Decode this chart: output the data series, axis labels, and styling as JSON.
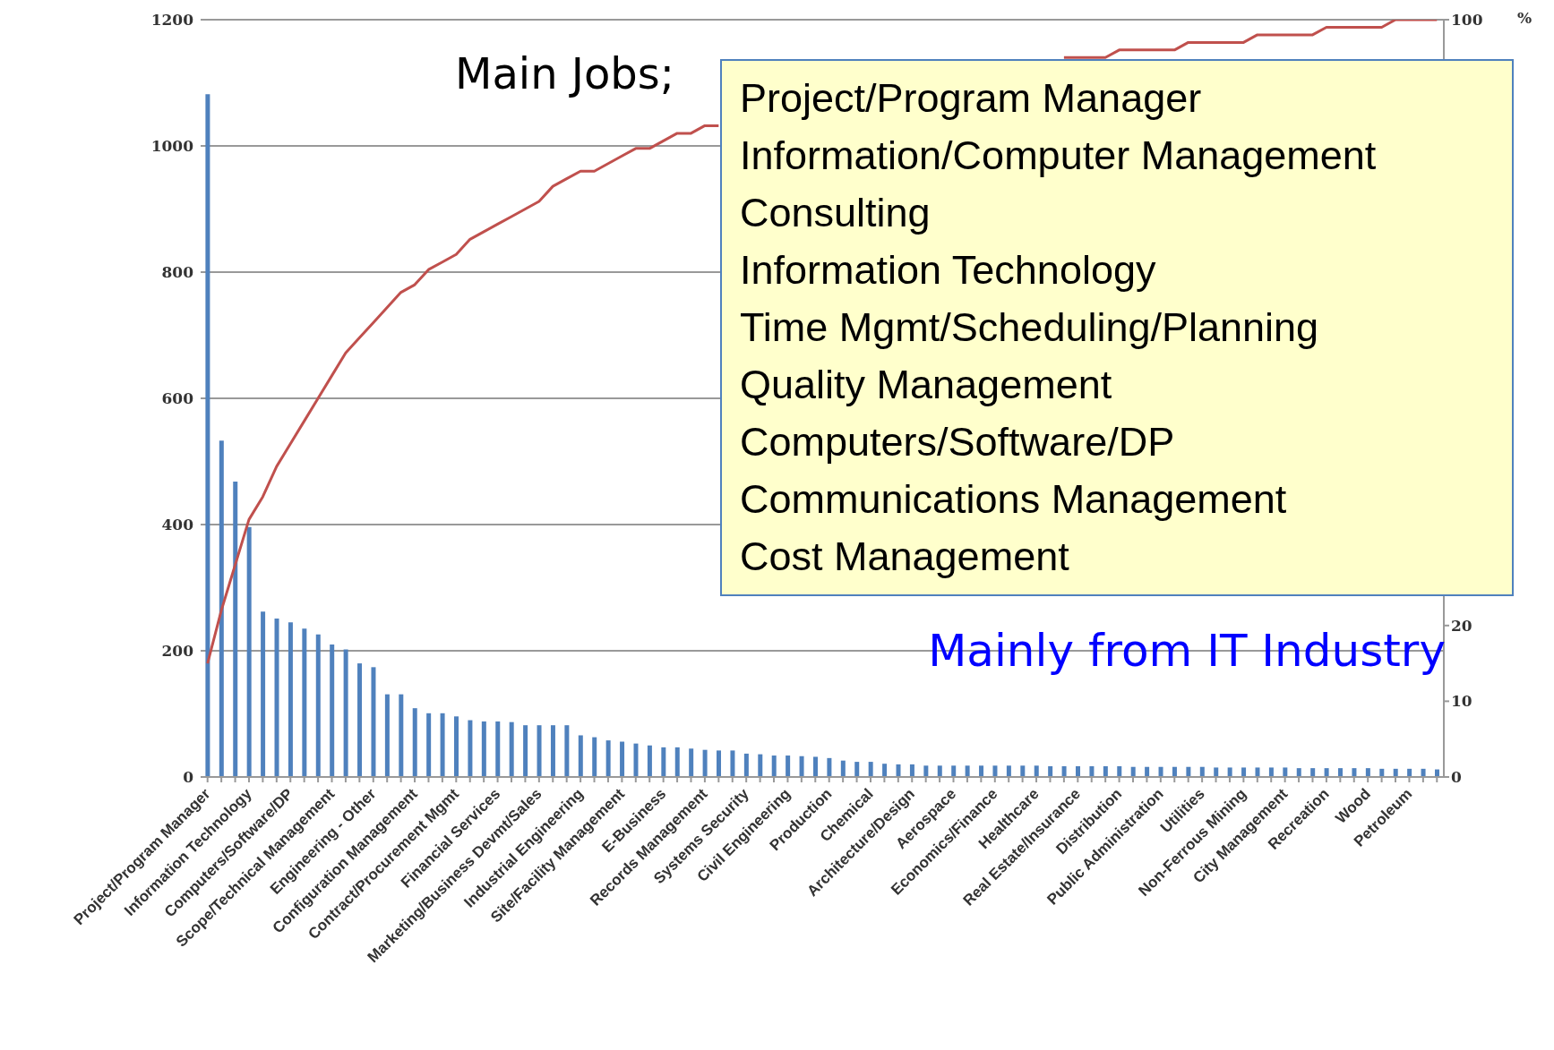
{
  "chart_data": {
    "type": "bar",
    "ylim": [
      0,
      1200
    ],
    "yticks": [
      0,
      200,
      400,
      600,
      800,
      1000,
      1200
    ],
    "y2lim": [
      0,
      100
    ],
    "y2ticks": [
      0,
      10,
      20,
      100
    ],
    "y2label": "%",
    "grid": "y",
    "legend": false,
    "categories": [
      "Project/Program Manager",
      null,
      null,
      "Information Technology",
      null,
      null,
      "Computers/Software/DP",
      null,
      null,
      "Scope/Technical Management",
      null,
      null,
      "Engineering - Other",
      null,
      null,
      "Configuration Management",
      null,
      null,
      "Contract/Procurement Mgmt",
      null,
      null,
      "Financial Services",
      null,
      null,
      "Marketing/Business Devmt/Sales",
      null,
      null,
      "Industrial Engineering",
      null,
      null,
      "Site/Facility Management",
      null,
      null,
      "E-Business",
      null,
      null,
      "Records Management",
      null,
      null,
      "Systems Security",
      null,
      null,
      "Civil Engineering",
      null,
      null,
      "Production",
      null,
      null,
      "Chemical",
      null,
      null,
      "Architecture/Design",
      null,
      null,
      "Aerospace",
      null,
      null,
      "Economics/Finance",
      null,
      null,
      "Healthcare",
      null,
      null,
      "Real Estate/Insurance",
      null,
      null,
      "Distribution",
      null,
      null,
      "Public Administration",
      null,
      null,
      "Utilities",
      null,
      null,
      "Non-Ferrous Mining",
      null,
      null,
      "City Management",
      null,
      null,
      "Recreation",
      null,
      null,
      "Wood",
      null,
      null,
      "Petroleum",
      null,
      null
    ],
    "series": [
      {
        "color": "#4f81bd",
        "values": [
          1082,
          533,
          468,
          396,
          262,
          251,
          245,
          235,
          226,
          210,
          202,
          180,
          174,
          131,
          131,
          109,
          101,
          101,
          96,
          90,
          88,
          88,
          87,
          82,
          82,
          82,
          82,
          66,
          63,
          58,
          56,
          53,
          50,
          47,
          47,
          45,
          43,
          42,
          42,
          37,
          36,
          34,
          34,
          33,
          32,
          30,
          26,
          24,
          24,
          21,
          20,
          20,
          18,
          18,
          18,
          18,
          18,
          18,
          18,
          18,
          18,
          17,
          17,
          17,
          17,
          17,
          17,
          16,
          16,
          16,
          16,
          16,
          16,
          15,
          15,
          15,
          15,
          15,
          15,
          14,
          14,
          14,
          14,
          14,
          14,
          13,
          13,
          13,
          13,
          12
        ]
      },
      {
        "type": "line",
        "axis": "y2",
        "color": "#c0504d",
        "values": [
          15,
          22,
          28,
          34,
          37,
          41,
          44,
          47,
          50,
          53,
          56,
          58,
          60,
          62,
          64,
          65,
          67,
          68,
          69,
          71,
          72,
          73,
          74,
          75,
          76,
          78,
          79,
          80,
          80,
          81,
          82,
          83,
          83,
          84,
          85,
          85,
          86,
          86,
          null,
          null,
          null,
          null,
          null,
          null,
          null,
          null,
          null,
          null,
          null,
          null,
          null,
          null,
          null,
          null,
          null,
          null,
          null,
          null,
          null,
          null,
          null,
          null,
          95,
          95,
          95,
          95,
          96,
          96,
          96,
          96,
          96,
          97,
          97,
          97,
          97,
          97,
          98,
          98,
          98,
          98,
          98,
          99,
          99,
          99,
          99,
          99,
          100,
          100,
          100,
          100
        ]
      }
    ],
    "annotations": [
      "Main Jobs;",
      "Project/Program Manager\nInformation/Computer Management\nConsulting\nInformation Technology\nTime Mgmt/Scheduling/Planning\nQuality Management\nComputers/Software/DP\nCommunications Management\nCost Management",
      "Mainly from IT Industry"
    ]
  }
}
